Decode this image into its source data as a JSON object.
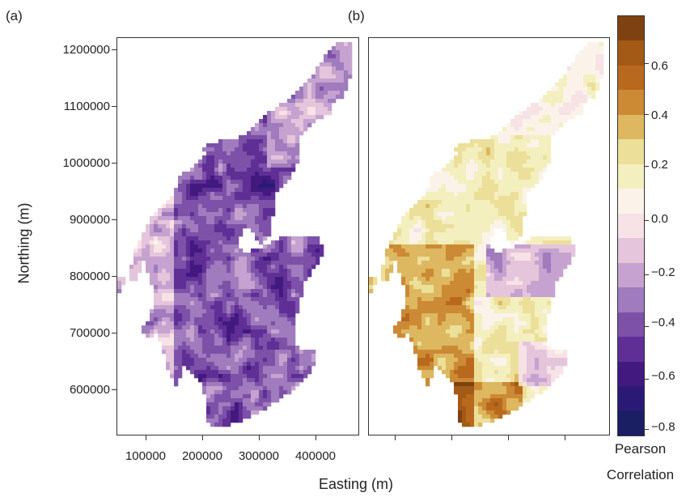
{
  "panels": [
    {
      "tag": "(a)",
      "palette": "purple",
      "title": ""
    },
    {
      "tag": "(b)",
      "palette": "orange",
      "title": ""
    }
  ],
  "axes": {
    "x_label": "Easting (m)",
    "y_label": "Northing (m)",
    "x_ticks": [
      "100000",
      "200000",
      "300000",
      "400000"
    ],
    "y_ticks": [
      "1200000",
      "1100000",
      "1000000",
      "900000",
      "800000",
      "700000",
      "600000"
    ]
  },
  "colorbar": {
    "title_line1": "Pearson",
    "title_line2": "Correlation",
    "tick_labels": [
      "0.6",
      "0.4",
      "0.2",
      "0.0",
      "−0.2",
      "−0.4",
      "−0.6",
      "−0.8"
    ],
    "range": [
      -0.8,
      0.8
    ],
    "colors": [
      "#1a1f63",
      "#2a1a75",
      "#42197f",
      "#5f2f96",
      "#7d51a8",
      "#a07bbd",
      "#c5a2cf",
      "#e4c5db",
      "#f7e2e6",
      "#fbf3ea",
      "#f4efbf",
      "#ecdf99",
      "#ddb860",
      "#cc8a35",
      "#b9691d",
      "#a35a16",
      "#7e4212"
    ]
  },
  "chart_data": {
    "type": "heatmap",
    "description_values": "Gridded Pearson correlation over Scotland; panel (a) mostly negative (-0.7 to 0.0), panel (b) mostly positive (0.0 to 0.6) with negative patches inland",
    "xlim": [
      50000,
      470000
    ],
    "ylim": [
      520000,
      1220000
    ]
  }
}
